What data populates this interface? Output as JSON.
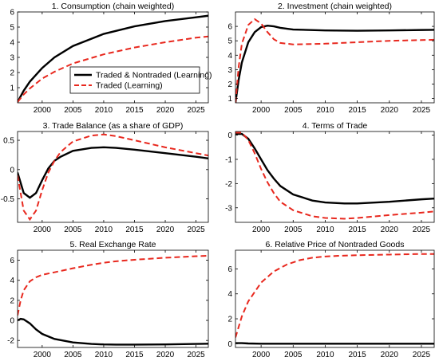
{
  "legend": {
    "entries": [
      {
        "label": "Traded & Nontraded (Learning)",
        "color": "#000000",
        "dash": "solid"
      },
      {
        "label": "Traded (Learning)",
        "color": "#e8281e",
        "dash": "dashed"
      }
    ]
  },
  "chart_data": [
    {
      "type": "line",
      "title": "1. Consumption (chain weighted)",
      "xlim": [
        1996,
        2027
      ],
      "ylim": [
        0,
        6
      ],
      "xticks": [
        2000,
        2005,
        2010,
        2015,
        2020,
        2025
      ],
      "yticks": [
        1,
        2,
        3,
        4,
        5,
        6
      ],
      "x": [
        1996,
        1997,
        1998,
        2000,
        2002,
        2005,
        2010,
        2015,
        2020,
        2025,
        2027
      ],
      "series": [
        {
          "name": "Traded & Nontraded (Learning)",
          "values": [
            0.05,
            0.8,
            1.4,
            2.3,
            3.0,
            3.75,
            4.55,
            5.05,
            5.4,
            5.65,
            5.75
          ]
        },
        {
          "name": "Traded (Learning)",
          "values": [
            0.05,
            0.55,
            0.95,
            1.6,
            2.05,
            2.6,
            3.2,
            3.65,
            4.0,
            4.3,
            4.38
          ]
        }
      ]
    },
    {
      "type": "line",
      "title": "2. Investment (chain weighted)",
      "xlim": [
        1996,
        2027
      ],
      "ylim": [
        0.7,
        7
      ],
      "xticks": [
        2000,
        2005,
        2010,
        2015,
        2020,
        2025
      ],
      "yticks": [
        1,
        2,
        3,
        4,
        5,
        6
      ],
      "x": [
        1996,
        1996.5,
        1997,
        1998,
        1999,
        2000,
        2001,
        2002,
        2003,
        2005,
        2010,
        2015,
        2020,
        2025,
        2027
      ],
      "series": [
        {
          "name": "Traded & Nontraded (Learning)",
          "values": [
            0.7,
            2.3,
            3.5,
            4.9,
            5.6,
            5.95,
            6.05,
            6.0,
            5.9,
            5.78,
            5.72,
            5.7,
            5.72,
            5.75,
            5.76
          ]
        },
        {
          "name": "Traded (Learning)",
          "values": [
            0.7,
            3.2,
            4.8,
            6.1,
            6.5,
            6.2,
            5.6,
            5.1,
            4.85,
            4.75,
            4.8,
            4.9,
            5.0,
            5.05,
            5.07
          ]
        }
      ]
    },
    {
      "type": "line",
      "title": "3. Trade Balance (as a share of GDP)",
      "xlim": [
        1996,
        2027
      ],
      "ylim": [
        -0.9,
        0.65
      ],
      "xticks": [
        2000,
        2005,
        2010,
        2015,
        2020,
        2025
      ],
      "yticks": [
        -0.5,
        0,
        0.5
      ],
      "ytick_labels": [
        "-0.5",
        "0",
        "0.5"
      ],
      "x": [
        1996,
        1997,
        1998,
        1999,
        2000,
        2001,
        2002,
        2003,
        2005,
        2008,
        2010,
        2012,
        2015,
        2020,
        2025,
        2027
      ],
      "series": [
        {
          "name": "Traded & Nontraded (Learning)",
          "values": [
            -0.05,
            -0.4,
            -0.48,
            -0.4,
            -0.18,
            0.02,
            0.15,
            0.22,
            0.32,
            0.37,
            0.38,
            0.37,
            0.34,
            0.28,
            0.22,
            0.19
          ]
        },
        {
          "name": "Traded (Learning)",
          "values": [
            -0.1,
            -0.7,
            -0.85,
            -0.7,
            -0.35,
            -0.05,
            0.15,
            0.3,
            0.48,
            0.58,
            0.6,
            0.57,
            0.5,
            0.38,
            0.28,
            0.24
          ]
        }
      ]
    },
    {
      "type": "line",
      "title": "4. Terms of Trade",
      "xlim": [
        1996,
        2027
      ],
      "ylim": [
        -3.6,
        0.15
      ],
      "xticks": [
        2000,
        2005,
        2010,
        2015,
        2020,
        2025
      ],
      "yticks": [
        -3,
        -2,
        -1,
        0
      ],
      "ytick_labels": [
        "-3",
        "-2",
        "-1",
        "0"
      ],
      "x": [
        1996,
        1997,
        1998,
        1999,
        2000,
        2001,
        2002,
        2003,
        2005,
        2008,
        2010,
        2013,
        2015,
        2020,
        2025,
        2027
      ],
      "series": [
        {
          "name": "Traded & Nontraded (Learning)",
          "values": [
            0.05,
            0.05,
            -0.15,
            -0.55,
            -1.0,
            -1.45,
            -1.8,
            -2.1,
            -2.45,
            -2.7,
            -2.78,
            -2.82,
            -2.82,
            -2.75,
            -2.65,
            -2.62
          ]
        },
        {
          "name": "Traded (Learning)",
          "values": [
            0.1,
            0.1,
            -0.2,
            -0.75,
            -1.4,
            -1.95,
            -2.4,
            -2.75,
            -3.1,
            -3.35,
            -3.42,
            -3.45,
            -3.42,
            -3.3,
            -3.2,
            -3.15
          ]
        }
      ]
    },
    {
      "type": "line",
      "title": "5. Real Exchange Rate",
      "xlim": [
        1996,
        2027
      ],
      "ylim": [
        -2.7,
        7
      ],
      "xticks": [
        2000,
        2005,
        2010,
        2015,
        2020,
        2025
      ],
      "yticks": [
        -2,
        0,
        2,
        4,
        6
      ],
      "ytick_labels": [
        "-2",
        "0",
        "2",
        "4",
        "6"
      ],
      "x": [
        1996,
        1996.5,
        1997,
        1998,
        1999,
        2000,
        2002,
        2005,
        2008,
        2010,
        2012,
        2015,
        2020,
        2025,
        2027
      ],
      "series": [
        {
          "name": "Traded & Nontraded (Learning)",
          "values": [
            0.0,
            0.15,
            0.1,
            -0.3,
            -0.9,
            -1.35,
            -1.85,
            -2.2,
            -2.35,
            -2.4,
            -2.42,
            -2.42,
            -2.4,
            -2.35,
            -2.33
          ]
        },
        {
          "name": "Traded (Learning)",
          "values": [
            0.5,
            2.0,
            3.0,
            3.9,
            4.3,
            4.55,
            4.8,
            5.2,
            5.55,
            5.75,
            5.9,
            6.05,
            6.25,
            6.4,
            6.45
          ]
        }
      ]
    },
    {
      "type": "line",
      "title": "6. Relative Price of Nontraded Goods",
      "xlim": [
        1996,
        2027
      ],
      "ylim": [
        -0.3,
        7.5
      ],
      "xticks": [
        2000,
        2005,
        2010,
        2015,
        2020,
        2025
      ],
      "yticks": [
        0,
        2,
        4,
        6
      ],
      "x": [
        1996,
        1997,
        1998,
        2000,
        2002,
        2004,
        2006,
        2008,
        2010,
        2012,
        2015,
        2020,
        2025,
        2027
      ],
      "series": [
        {
          "name": "Traded & Nontraded (Learning)",
          "values": [
            0.05,
            0.05,
            0.02,
            0.0,
            0.0,
            0.0,
            0.0,
            0.0,
            0.0,
            0.0,
            0.0,
            0.0,
            0.0,
            0.0
          ]
        },
        {
          "name": "Traded (Learning)",
          "values": [
            0.5,
            2.2,
            3.4,
            4.9,
            5.8,
            6.35,
            6.7,
            6.9,
            7.0,
            7.05,
            7.1,
            7.15,
            7.2,
            7.2
          ]
        }
      ]
    }
  ]
}
